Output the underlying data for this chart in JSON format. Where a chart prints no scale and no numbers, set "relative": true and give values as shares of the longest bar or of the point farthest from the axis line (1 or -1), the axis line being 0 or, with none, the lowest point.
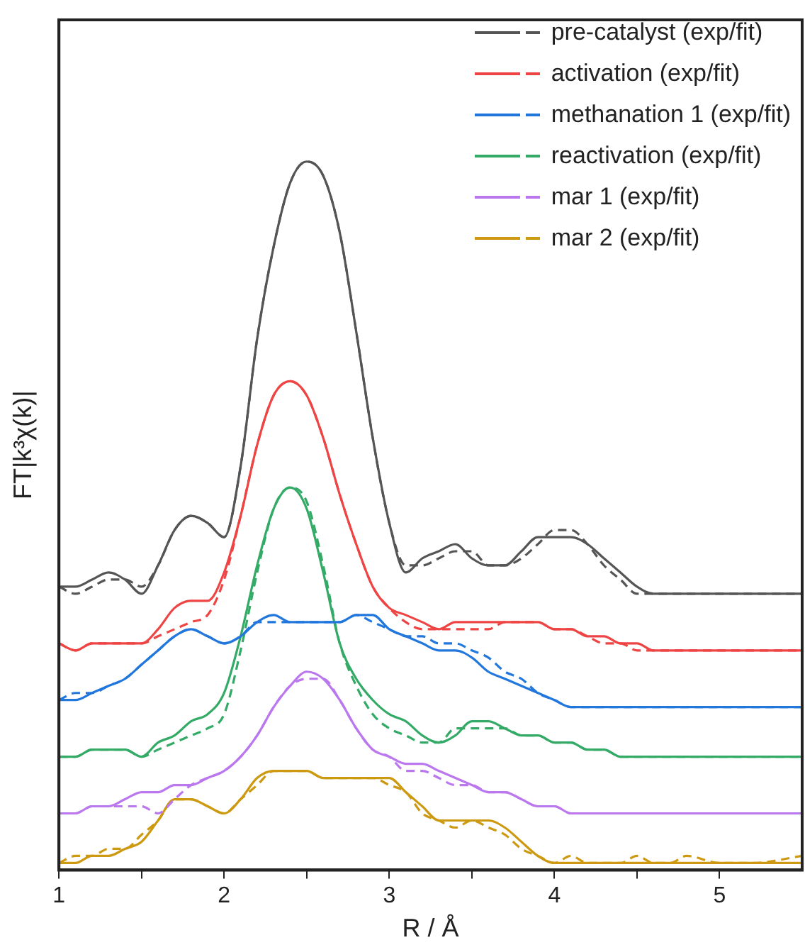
{
  "chart_data": {
    "type": "line",
    "xlabel": "R / Å",
    "ylabel": "FT|k³χ(k)|",
    "relative": true,
    "legend": "top right",
    "grid": false,
    "marker": "none",
    "x": [
      1.0,
      1.1,
      1.2,
      1.3,
      1.4,
      1.5,
      1.6,
      1.7,
      1.8,
      1.9,
      2.0,
      2.1,
      2.2,
      2.3,
      2.4,
      2.5,
      2.6,
      2.7,
      2.8,
      2.9,
      3.0,
      3.1,
      3.2,
      3.3,
      3.4,
      3.5,
      3.6,
      3.7,
      3.8,
      3.9,
      4.0,
      4.1,
      4.2,
      4.3,
      4.4,
      4.5,
      4.6,
      4.7,
      4.8,
      5.0,
      5.2,
      5.5
    ],
    "xlim": [
      1,
      5.5
    ],
    "xticks": [
      1,
      {
        "value": 1.5,
        "label": null
      },
      2,
      {
        "value": 2.5,
        "label": null
      },
      3,
      {
        "value": 3.5,
        "label": null
      },
      4,
      {
        "value": 4.5,
        "label": null
      },
      5
    ],
    "series": [
      {
        "name": "pre-catalyst (exp/fit)",
        "color": "#555555",
        "line_style": "solid",
        "values": [
          0.4,
          0.4,
          0.41,
          0.42,
          0.41,
          0.39,
          0.43,
          0.48,
          0.5,
          0.49,
          0.47,
          0.57,
          0.75,
          0.88,
          0.97,
          1,
          0.98,
          0.9,
          0.76,
          0.61,
          0.49,
          0.42,
          0.44,
          0.45,
          0.46,
          0.44,
          0.43,
          0.43,
          0.45,
          0.47,
          0.47,
          0.47,
          0.46,
          0.44,
          0.42,
          0.4,
          0.39,
          0.39,
          0.39,
          0.39,
          0.39,
          0.39
        ]
      },
      {
        "color": "#555555",
        "line_style": "dashed",
        "values": [
          0.4,
          0.39,
          0.4,
          0.41,
          0.41,
          0.4,
          0.43,
          0.48,
          0.5,
          0.49,
          0.47,
          0.57,
          0.75,
          0.88,
          0.97,
          1,
          0.98,
          0.9,
          0.76,
          0.61,
          0.49,
          0.43,
          0.43,
          0.44,
          0.45,
          0.45,
          0.43,
          0.43,
          0.44,
          0.46,
          0.48,
          0.48,
          0.46,
          0.43,
          0.41,
          0.39,
          0.39,
          0.39,
          0.39,
          0.39,
          0.39,
          0.39
        ]
      },
      {
        "name": "activation (exp/fit)",
        "color": "#ee4444",
        "line_style": "solid",
        "values": [
          0.32,
          0.31,
          0.32,
          0.32,
          0.32,
          0.32,
          0.34,
          0.37,
          0.38,
          0.38,
          0.42,
          0.5,
          0.6,
          0.67,
          0.69,
          0.67,
          0.61,
          0.53,
          0.46,
          0.4,
          0.37,
          0.36,
          0.35,
          0.34,
          0.35,
          0.35,
          0.35,
          0.35,
          0.35,
          0.35,
          0.34,
          0.34,
          0.33,
          0.33,
          0.32,
          0.32,
          0.31,
          0.31,
          0.31,
          0.31,
          0.31,
          0.31
        ]
      },
      {
        "color": "#ee4444",
        "line_style": "dashed",
        "values": [
          0.32,
          0.31,
          0.32,
          0.32,
          0.32,
          0.32,
          0.33,
          0.34,
          0.35,
          0.36,
          0.41,
          0.5,
          0.6,
          0.67,
          0.69,
          0.67,
          0.61,
          0.53,
          0.46,
          0.4,
          0.37,
          0.35,
          0.34,
          0.34,
          0.34,
          0.34,
          0.34,
          0.35,
          0.35,
          0.35,
          0.34,
          0.34,
          0.33,
          0.32,
          0.32,
          0.31,
          0.31,
          0.31,
          0.31,
          0.31,
          0.31,
          0.31
        ]
      },
      {
        "name": "methanation 1 (exp/fit)",
        "color": "#2277dd",
        "line_style": "solid",
        "values": [
          0.24,
          0.24,
          0.25,
          0.26,
          0.27,
          0.29,
          0.31,
          0.33,
          0.34,
          0.33,
          0.32,
          0.33,
          0.35,
          0.36,
          0.35,
          0.35,
          0.35,
          0.35,
          0.36,
          0.36,
          0.34,
          0.33,
          0.32,
          0.31,
          0.31,
          0.3,
          0.28,
          0.27,
          0.26,
          0.25,
          0.24,
          0.23,
          0.23,
          0.23,
          0.23,
          0.23,
          0.23,
          0.23,
          0.23,
          0.23,
          0.23,
          0.23
        ]
      },
      {
        "color": "#2277dd",
        "line_style": "dashed",
        "values": [
          0.24,
          0.25,
          0.25,
          0.26,
          0.27,
          0.29,
          0.31,
          0.33,
          0.34,
          0.33,
          0.32,
          0.33,
          0.35,
          0.35,
          0.35,
          0.35,
          0.35,
          0.35,
          0.36,
          0.35,
          0.34,
          0.33,
          0.33,
          0.32,
          0.32,
          0.31,
          0.3,
          0.28,
          0.27,
          0.25,
          0.24,
          0.23,
          0.23,
          0.23,
          0.23,
          0.23,
          0.23,
          0.23,
          0.23,
          0.23,
          0.23,
          0.23
        ]
      },
      {
        "name": "reactivation (exp/fit)",
        "color": "#33aa66",
        "line_style": "solid",
        "values": [
          0.16,
          0.16,
          0.17,
          0.17,
          0.17,
          0.16,
          0.18,
          0.19,
          0.21,
          0.22,
          0.25,
          0.33,
          0.43,
          0.51,
          0.54,
          0.51,
          0.42,
          0.32,
          0.27,
          0.24,
          0.22,
          0.21,
          0.19,
          0.18,
          0.19,
          0.21,
          0.21,
          0.2,
          0.19,
          0.19,
          0.18,
          0.18,
          0.17,
          0.17,
          0.16,
          0.16,
          0.16,
          0.16,
          0.16,
          0.16,
          0.16,
          0.16
        ]
      },
      {
        "color": "#33aa66",
        "line_style": "dashed",
        "values": [
          0.16,
          0.16,
          0.17,
          0.17,
          0.17,
          0.16,
          0.17,
          0.18,
          0.19,
          0.2,
          0.22,
          0.31,
          0.42,
          0.51,
          0.54,
          0.52,
          0.43,
          0.32,
          0.26,
          0.22,
          0.2,
          0.19,
          0.18,
          0.18,
          0.2,
          0.2,
          0.2,
          0.2,
          0.19,
          0.19,
          0.18,
          0.18,
          0.17,
          0.17,
          0.16,
          0.16,
          0.16,
          0.16,
          0.16,
          0.16,
          0.16,
          0.16
        ]
      },
      {
        "name": "mar 1 (exp/fit)",
        "color": "#bb77ee",
        "line_style": "solid",
        "values": [
          0.08,
          0.08,
          0.09,
          0.09,
          0.1,
          0.11,
          0.11,
          0.12,
          0.12,
          0.13,
          0.14,
          0.16,
          0.19,
          0.23,
          0.26,
          0.28,
          0.27,
          0.24,
          0.2,
          0.17,
          0.16,
          0.15,
          0.15,
          0.14,
          0.13,
          0.12,
          0.11,
          0.11,
          0.1,
          0.09,
          0.09,
          0.08,
          0.08,
          0.08,
          0.08,
          0.08,
          0.08,
          0.08,
          0.08,
          0.08,
          0.08,
          0.08
        ]
      },
      {
        "color": "#bb77ee",
        "line_style": "dashed",
        "values": [
          0.08,
          0.08,
          0.09,
          0.09,
          0.09,
          0.09,
          0.08,
          0.1,
          0.12,
          0.13,
          0.14,
          0.16,
          0.19,
          0.23,
          0.26,
          0.27,
          0.27,
          0.24,
          0.2,
          0.17,
          0.16,
          0.14,
          0.14,
          0.13,
          0.12,
          0.12,
          0.11,
          0.11,
          0.1,
          0.09,
          0.09,
          0.08,
          0.08,
          0.08,
          0.08,
          0.08,
          0.08,
          0.08,
          0.08,
          0.08,
          0.08,
          0.08
        ]
      },
      {
        "name": "mar 2 (exp/fit)",
        "color": "#cc9911",
        "line_style": "solid",
        "values": [
          0.01,
          0.01,
          0.02,
          0.02,
          0.03,
          0.04,
          0.07,
          0.1,
          0.1,
          0.09,
          0.08,
          0.1,
          0.13,
          0.14,
          0.14,
          0.14,
          0.13,
          0.13,
          0.13,
          0.13,
          0.13,
          0.11,
          0.09,
          0.07,
          0.07,
          0.07,
          0.07,
          0.06,
          0.04,
          0.02,
          0.01,
          0.01,
          0.01,
          0.01,
          0.01,
          0.01,
          0.01,
          0.01,
          0.01,
          0.01,
          0.01,
          0.01
        ]
      },
      {
        "color": "#cc9911",
        "line_style": "dashed",
        "values": [
          0.01,
          0.02,
          0.02,
          0.03,
          0.03,
          0.05,
          0.07,
          0.1,
          0.1,
          0.09,
          0.08,
          0.1,
          0.12,
          0.14,
          0.14,
          0.14,
          0.13,
          0.13,
          0.13,
          0.13,
          0.12,
          0.11,
          0.08,
          0.07,
          0.06,
          0.07,
          0.06,
          0.05,
          0.03,
          0.02,
          0.01,
          0.02,
          0.01,
          0.01,
          0.01,
          0.02,
          0.01,
          0.01,
          0.02,
          0.01,
          0.01,
          0.02
        ]
      }
    ]
  }
}
